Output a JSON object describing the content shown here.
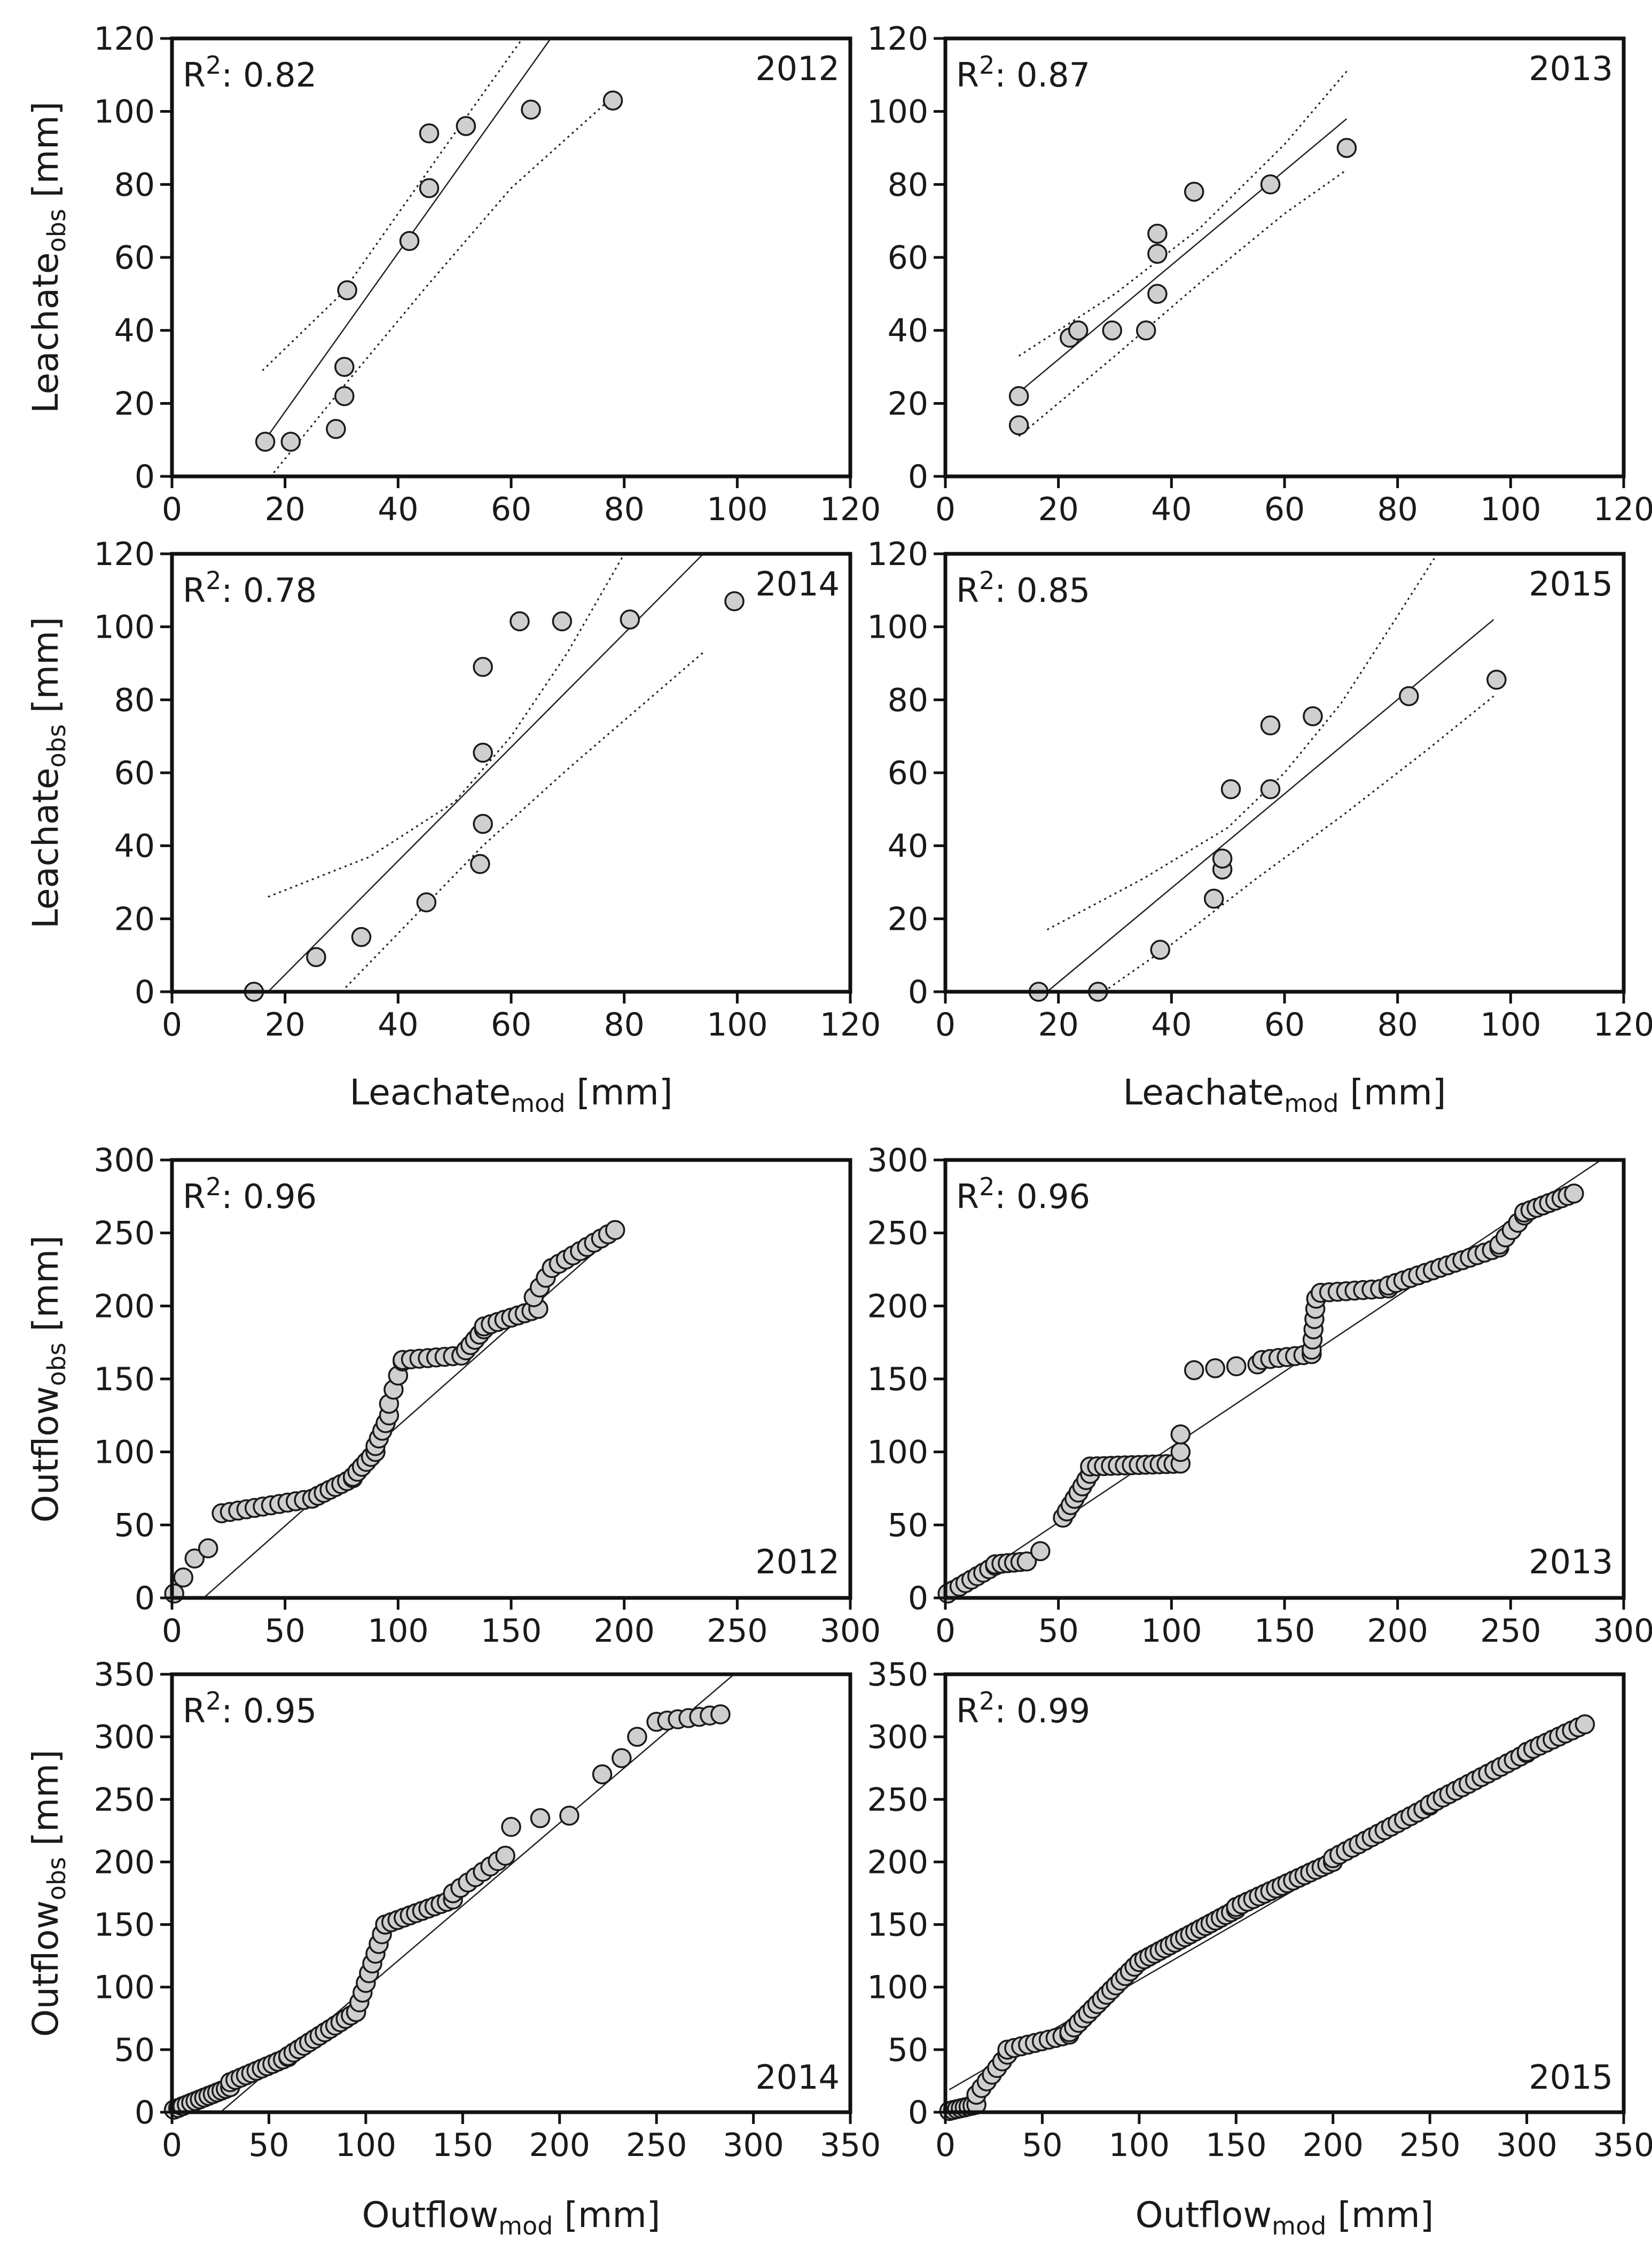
{
  "chart_data": [
    {
      "type": "scatter",
      "id": "leach2012",
      "year": "2012",
      "r2": "0.82",
      "xlim": [
        0,
        120
      ],
      "ylim": [
        0,
        120
      ],
      "xticks": [
        "0",
        "20",
        "40",
        "60",
        "80",
        "100",
        "120"
      ],
      "yticks": [
        "0",
        "20",
        "40",
        "60",
        "80",
        "100",
        "120"
      ],
      "ylabel": "Leachate",
      "ylabel_sub": "obs",
      "ylabel_unit": "[mm]",
      "xlabel": "",
      "xlabel_sub": "",
      "xlabel_unit": "",
      "fit": {
        "x": [
          16,
          67
        ],
        "y": [
          9,
          120
        ]
      },
      "ci_upper": {
        "x": [
          16,
          30,
          40,
          50,
          62
        ],
        "y": [
          29,
          50,
          72,
          94,
          120
        ]
      },
      "ci_lower": {
        "x": [
          18,
          30,
          45,
          60,
          78
        ],
        "y": [
          1,
          24,
          52,
          79,
          104
        ]
      },
      "points": [
        [
          16.5,
          9.5
        ],
        [
          21,
          9.5
        ],
        [
          29,
          13
        ],
        [
          30.5,
          22
        ],
        [
          30.5,
          30
        ],
        [
          31,
          51
        ],
        [
          42,
          64.5
        ],
        [
          45.5,
          79
        ],
        [
          45.5,
          94
        ],
        [
          52,
          96
        ],
        [
          63.5,
          100.5
        ],
        [
          78,
          103
        ]
      ]
    },
    {
      "type": "scatter",
      "id": "leach2013",
      "year": "2013",
      "r2": "0.87",
      "xlim": [
        0,
        120
      ],
      "ylim": [
        0,
        120
      ],
      "xticks": [
        "0",
        "20",
        "40",
        "60",
        "80",
        "100",
        "120"
      ],
      "yticks": [
        "0",
        "20",
        "40",
        "60",
        "80",
        "100",
        "120"
      ],
      "ylabel": "",
      "ylabel_sub": "",
      "ylabel_unit": "",
      "xlabel": "",
      "xlabel_sub": "",
      "xlabel_unit": "",
      "fit": {
        "x": [
          13,
          71
        ],
        "y": [
          23,
          98
        ]
      },
      "ci_upper": {
        "x": [
          13,
          30,
          45,
          60,
          71
        ],
        "y": [
          33,
          50,
          68,
          91,
          111
        ]
      },
      "ci_lower": {
        "x": [
          13,
          30,
          45,
          60,
          71
        ],
        "y": [
          11,
          33,
          53,
          72,
          84
        ]
      },
      "points": [
        [
          13,
          14
        ],
        [
          13,
          22
        ],
        [
          22,
          38
        ],
        [
          23.5,
          40
        ],
        [
          29.5,
          40
        ],
        [
          35.5,
          40
        ],
        [
          37.5,
          50
        ],
        [
          37.5,
          61
        ],
        [
          37.5,
          66.5
        ],
        [
          44,
          78
        ],
        [
          57.5,
          80
        ],
        [
          71,
          90
        ]
      ]
    },
    {
      "type": "scatter",
      "id": "leach2014",
      "year": "2014",
      "r2": "0.78",
      "xlim": [
        0,
        120
      ],
      "ylim": [
        0,
        120
      ],
      "xticks": [
        "0",
        "20",
        "40",
        "60",
        "80",
        "100",
        "120"
      ],
      "yticks": [
        "0",
        "20",
        "40",
        "60",
        "80",
        "100",
        "120"
      ],
      "ylabel": "Leachate",
      "ylabel_sub": "obs",
      "ylabel_unit": "[mm]",
      "xlabel": "Leachate",
      "xlabel_sub": "mod",
      "xlabel_unit": "[mm]",
      "fit": {
        "x": [
          17,
          94
        ],
        "y": [
          0,
          120
        ]
      },
      "ci_upper": {
        "x": [
          17,
          35,
          50,
          60,
          70,
          80
        ],
        "y": [
          26,
          37,
          52,
          70,
          93,
          120
        ]
      },
      "ci_lower": {
        "x": [
          30,
          45,
          55,
          70,
          85,
          94
        ],
        "y": [
          0,
          24,
          40,
          61,
          81,
          93
        ]
      },
      "points": [
        [
          14.5,
          0
        ],
        [
          25.5,
          9.5
        ],
        [
          33.5,
          15
        ],
        [
          45,
          24.5
        ],
        [
          54.5,
          35
        ],
        [
          55,
          46
        ],
        [
          55,
          65.5
        ],
        [
          55,
          89
        ],
        [
          61.5,
          101.5
        ],
        [
          69,
          101.5
        ],
        [
          81,
          102
        ],
        [
          99.5,
          107
        ]
      ]
    },
    {
      "type": "scatter",
      "id": "leach2015",
      "year": "2015",
      "r2": "0.85",
      "xlim": [
        0,
        120
      ],
      "ylim": [
        0,
        120
      ],
      "xticks": [
        "0",
        "20",
        "40",
        "60",
        "80",
        "100",
        "120"
      ],
      "yticks": [
        "0",
        "20",
        "40",
        "60",
        "80",
        "100",
        "120"
      ],
      "ylabel": "",
      "ylabel_sub": "",
      "ylabel_unit": "",
      "xlabel": "Leachate",
      "xlabel_sub": "mod",
      "xlabel_unit": "[mm]",
      "fit": {
        "x": [
          18,
          97
        ],
        "y": [
          0,
          102
        ]
      },
      "ci_upper": {
        "x": [
          18,
          35,
          50,
          60,
          70,
          80,
          87
        ],
        "y": [
          17,
          31,
          45,
          60,
          79,
          103,
          120
        ]
      },
      "ci_lower": {
        "x": [
          28,
          40,
          55,
          70,
          85,
          97
        ],
        "y": [
          0,
          13,
          31,
          48,
          66,
          81
        ]
      },
      "points": [
        [
          16.5,
          0
        ],
        [
          27,
          0
        ],
        [
          38,
          11.5
        ],
        [
          47.5,
          25.5
        ],
        [
          49,
          33.5
        ],
        [
          49,
          36.5
        ],
        [
          50.5,
          55.5
        ],
        [
          57.5,
          55.5
        ],
        [
          57.5,
          73
        ],
        [
          65,
          75.5
        ],
        [
          82,
          81
        ],
        [
          97.5,
          85.5
        ]
      ]
    },
    {
      "type": "scatter",
      "id": "out2012",
      "year": "2012",
      "r2": "0.96",
      "xlim": [
        0,
        300
      ],
      "ylim": [
        0,
        300
      ],
      "xticks": [
        "0",
        "50",
        "100",
        "150",
        "200",
        "250",
        "300"
      ],
      "yticks": [
        "0",
        "50",
        "100",
        "150",
        "200",
        "250",
        "300"
      ],
      "ylabel": "Outflow",
      "ylabel_sub": "obs",
      "ylabel_unit": "[mm]",
      "xlabel": "",
      "xlabel_sub": "",
      "xlabel_unit": "",
      "fit": {
        "x": [
          14,
          198
        ],
        "y": [
          0,
          252
        ]
      },
      "segments": [
        {
          "x0": 1,
          "x1": 1,
          "y0": 3,
          "y1": 3,
          "n": 1
        },
        {
          "x0": 5,
          "x1": 5,
          "y0": 14,
          "y1": 14,
          "n": 1
        },
        {
          "x0": 10,
          "x1": 10,
          "y0": 27,
          "y1": 27,
          "n": 1
        },
        {
          "x0": 16,
          "x1": 16,
          "y0": 34,
          "y1": 34,
          "n": 1
        },
        {
          "x0": 22,
          "x1": 62,
          "y0": 58,
          "y1": 68,
          "n": 12
        },
        {
          "x0": 62,
          "x1": 80,
          "y0": 68,
          "y1": 82,
          "n": 8
        },
        {
          "x0": 80,
          "x1": 90,
          "y0": 83,
          "y1": 100,
          "n": 6
        },
        {
          "x0": 90,
          "x1": 96,
          "y0": 104,
          "y1": 125,
          "n": 5
        },
        {
          "x0": 96,
          "x1": 102,
          "y0": 133,
          "y1": 162,
          "n": 4
        },
        {
          "x0": 102,
          "x1": 128,
          "y0": 163,
          "y1": 166,
          "n": 8
        },
        {
          "x0": 128,
          "x1": 138,
          "y0": 166,
          "y1": 184,
          "n": 6
        },
        {
          "x0": 138,
          "x1": 162,
          "y0": 186,
          "y1": 198,
          "n": 9
        },
        {
          "x0": 160,
          "x1": 168,
          "y0": 206,
          "y1": 226,
          "n": 4
        },
        {
          "x0": 168,
          "x1": 196,
          "y0": 226,
          "y1": 252,
          "n": 10
        }
      ]
    },
    {
      "type": "scatter",
      "id": "out2013",
      "year": "2013",
      "r2": "0.96",
      "xlim": [
        0,
        300
      ],
      "ylim": [
        0,
        300
      ],
      "xticks": [
        "0",
        "50",
        "100",
        "150",
        "200",
        "250",
        "300"
      ],
      "yticks": [
        "0",
        "50",
        "100",
        "150",
        "200",
        "250",
        "300"
      ],
      "ylabel": "",
      "ylabel_sub": "",
      "ylabel_unit": "",
      "xlabel": "",
      "xlabel_sub": "",
      "xlabel_unit": "",
      "fit": {
        "x": [
          0,
          290
        ],
        "y": [
          0,
          300
        ]
      },
      "segments": [
        {
          "x0": 1,
          "x1": 22,
          "y0": 3,
          "y1": 22,
          "n": 9
        },
        {
          "x0": 22,
          "x1": 36,
          "y0": 23,
          "y1": 25,
          "n": 6
        },
        {
          "x0": 42,
          "x1": 42,
          "y0": 32,
          "y1": 32,
          "n": 1
        },
        {
          "x0": 52,
          "x1": 64,
          "y0": 55,
          "y1": 85,
          "n": 8
        },
        {
          "x0": 64,
          "x1": 104,
          "y0": 90,
          "y1": 92,
          "n": 14
        },
        {
          "x0": 104,
          "x1": 104,
          "y0": 100,
          "y1": 112,
          "n": 2
        },
        {
          "x0": 110,
          "x1": 138,
          "y0": 156,
          "y1": 160,
          "n": 4
        },
        {
          "x0": 140,
          "x1": 162,
          "y0": 163,
          "y1": 167,
          "n": 7
        },
        {
          "x0": 162,
          "x1": 164,
          "y0": 170,
          "y1": 205,
          "n": 6
        },
        {
          "x0": 166,
          "x1": 196,
          "y0": 209,
          "y1": 212,
          "n": 9
        },
        {
          "x0": 196,
          "x1": 245,
          "y0": 214,
          "y1": 240,
          "n": 16
        },
        {
          "x0": 245,
          "x1": 256,
          "y0": 242,
          "y1": 262,
          "n": 5
        },
        {
          "x0": 256,
          "x1": 278,
          "y0": 264,
          "y1": 277,
          "n": 9
        }
      ]
    },
    {
      "type": "scatter",
      "id": "out2014",
      "year": "2014",
      "r2": "0.95",
      "xlim": [
        0,
        350
      ],
      "ylim": [
        0,
        350
      ],
      "xticks": [
        "0",
        "50",
        "100",
        "150",
        "200",
        "250",
        "300",
        "350"
      ],
      "yticks": [
        "0",
        "50",
        "100",
        "150",
        "200",
        "250",
        "300",
        "350"
      ],
      "ylabel": "Outflow",
      "ylabel_sub": "obs",
      "ylabel_unit": "[mm]",
      "xlabel": "Outflow",
      "xlabel_sub": "mod",
      "xlabel_unit": "[mm]",
      "fit": {
        "x": [
          25,
          290
        ],
        "y": [
          0,
          350
        ]
      },
      "segments": [
        {
          "x0": 1,
          "x1": 30,
          "y0": 2,
          "y1": 20,
          "n": 14
        },
        {
          "x0": 30,
          "x1": 60,
          "y0": 24,
          "y1": 44,
          "n": 12
        },
        {
          "x0": 60,
          "x1": 95,
          "y0": 45,
          "y1": 80,
          "n": 14
        },
        {
          "x0": 95,
          "x1": 110,
          "y0": 80,
          "y1": 150,
          "n": 10
        },
        {
          "x0": 110,
          "x1": 145,
          "y0": 150,
          "y1": 170,
          "n": 12
        },
        {
          "x0": 145,
          "x1": 172,
          "y0": 175,
          "y1": 205,
          "n": 8
        },
        {
          "x0": 175,
          "x1": 175,
          "y0": 228,
          "y1": 228,
          "n": 1
        },
        {
          "x0": 190,
          "x1": 190,
          "y0": 235,
          "y1": 235,
          "n": 1
        },
        {
          "x0": 205,
          "x1": 205,
          "y0": 237,
          "y1": 237,
          "n": 1
        },
        {
          "x0": 222,
          "x1": 222,
          "y0": 270,
          "y1": 270,
          "n": 1
        },
        {
          "x0": 232,
          "x1": 240,
          "y0": 283,
          "y1": 300,
          "n": 2
        },
        {
          "x0": 250,
          "x1": 283,
          "y0": 312,
          "y1": 318,
          "n": 7
        }
      ]
    },
    {
      "type": "scatter",
      "id": "out2015",
      "year": "2015",
      "r2": "0.99",
      "xlim": [
        0,
        350
      ],
      "ylim": [
        0,
        350
      ],
      "xticks": [
        "0",
        "50",
        "100",
        "150",
        "200",
        "250",
        "300",
        "350"
      ],
      "yticks": [
        "0",
        "50",
        "100",
        "150",
        "200",
        "250",
        "300",
        "350"
      ],
      "ylabel": "",
      "ylabel_sub": "",
      "ylabel_unit": "",
      "xlabel": "Outflow",
      "xlabel_sub": "mod",
      "xlabel_unit": "[mm]",
      "fit": {
        "x": [
          2,
          330
        ],
        "y": [
          18,
          312
        ]
      },
      "segments": [
        {
          "x0": 2,
          "x1": 16,
          "y0": 1,
          "y1": 6,
          "n": 8
        },
        {
          "x0": 16,
          "x1": 32,
          "y0": 14,
          "y1": 46,
          "n": 7
        },
        {
          "x0": 32,
          "x1": 64,
          "y0": 50,
          "y1": 62,
          "n": 10
        },
        {
          "x0": 64,
          "x1": 100,
          "y0": 64,
          "y1": 120,
          "n": 16
        },
        {
          "x0": 100,
          "x1": 150,
          "y0": 120,
          "y1": 162,
          "n": 20
        },
        {
          "x0": 150,
          "x1": 200,
          "y0": 164,
          "y1": 200,
          "n": 18
        },
        {
          "x0": 200,
          "x1": 250,
          "y0": 203,
          "y1": 245,
          "n": 16
        },
        {
          "x0": 250,
          "x1": 300,
          "y0": 246,
          "y1": 287,
          "n": 16
        },
        {
          "x0": 300,
          "x1": 330,
          "y0": 288,
          "y1": 310,
          "n": 10
        }
      ]
    }
  ]
}
